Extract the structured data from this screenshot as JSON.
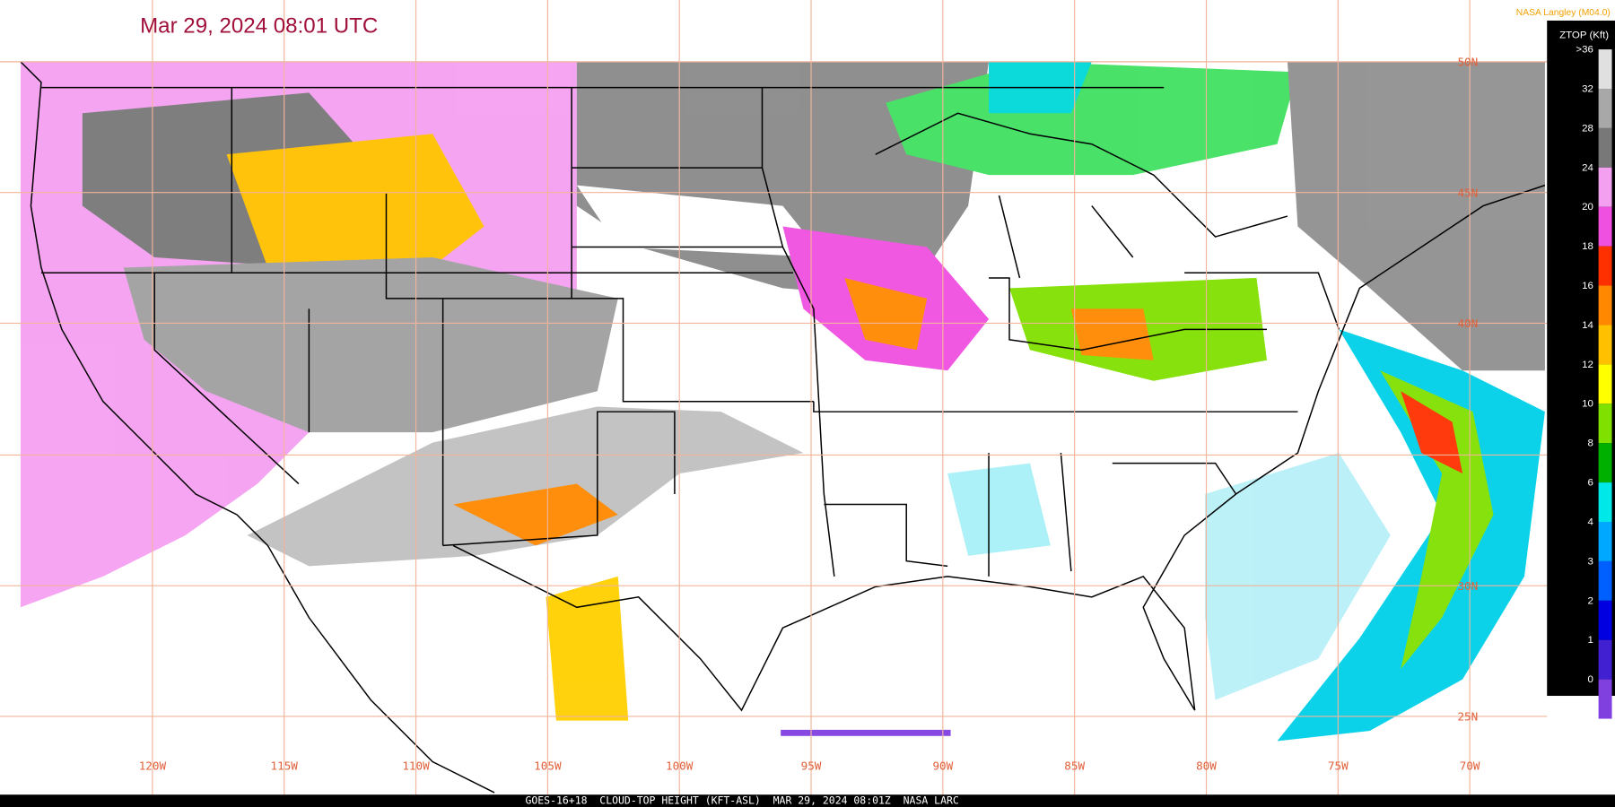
{
  "header": {
    "title": "Mar 29, 2024 08:01 UTC",
    "source": "NASA Langley (M04.0)"
  },
  "colorbar": {
    "title": "ZTOP (Kft)",
    "levels": [
      {
        "label": ">36",
        "color": "#e0e0e0"
      },
      {
        "label": "32",
        "color": "#a8a8a8"
      },
      {
        "label": "28",
        "color": "#787878"
      },
      {
        "label": "24",
        "color": "#f4a0f0"
      },
      {
        "label": "20",
        "color": "#f050e0"
      },
      {
        "label": "18",
        "color": "#ff3000"
      },
      {
        "label": "16",
        "color": "#ff8800"
      },
      {
        "label": "14",
        "color": "#ffc000"
      },
      {
        "label": "12",
        "color": "#ffff00"
      },
      {
        "label": "10",
        "color": "#80e000"
      },
      {
        "label": "8",
        "color": "#00b000"
      },
      {
        "label": "6",
        "color": "#00e8e8"
      },
      {
        "label": "4",
        "color": "#00a8ff"
      },
      {
        "label": "3",
        "color": "#0060ff"
      },
      {
        "label": "2",
        "color": "#0000e0"
      },
      {
        "label": "1",
        "color": "#4020d0"
      },
      {
        "label": "0",
        "color": "#8040e0"
      }
    ]
  },
  "longitude_labels": [
    "120W",
    "115W",
    "110W",
    "105W",
    "100W",
    "95W",
    "90W",
    "85W",
    "80W",
    "75W",
    "70W"
  ],
  "latitude_labels": [
    "50N",
    "45N",
    "40N",
    "30N",
    "25N"
  ],
  "footer": "GOES-16+18  CLOUD-TOP HEIGHT (KFT-ASL)  MAR 29, 2024 08:01Z  NASA LARC"
}
